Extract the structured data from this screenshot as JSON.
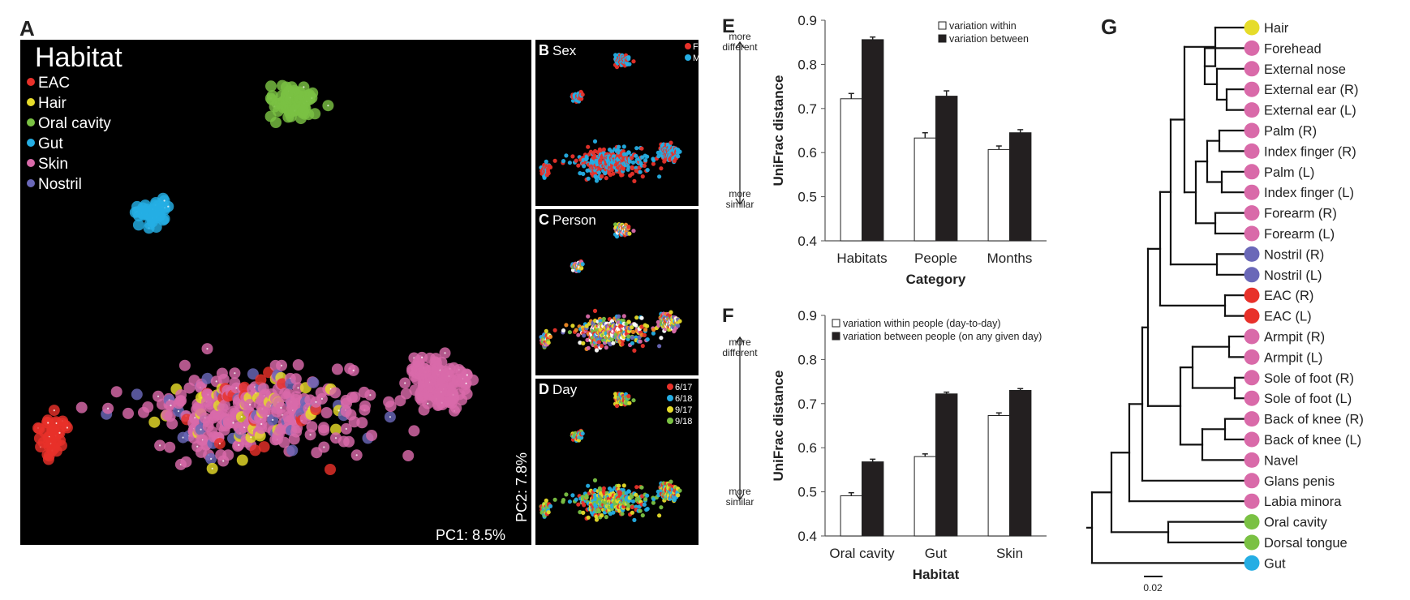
{
  "colors": {
    "EAC": "#e8312a",
    "Hair": "#e6dc2a",
    "Oral": "#7ac143",
    "Gut": "#25aee4",
    "Skin": "#d96aa9",
    "Nostril": "#6a68b8",
    "F": "#e8312a",
    "M": "#25aee4",
    "d617": "#e8312a",
    "d618": "#25aee4",
    "d917": "#e6dc2a",
    "d918": "#7ac143",
    "bg": "#000000",
    "bar_within": "#ffffff",
    "bar_between": "#231f20"
  },
  "panels": {
    "A": {
      "letter": "A",
      "title": "Habitat",
      "legend": [
        "EAC",
        "Hair",
        "Oral cavity",
        "Gut",
        "Skin",
        "Nostril"
      ],
      "pc1": "PC1: 8.5%",
      "pc2": "PC2: 7.8%"
    },
    "B": {
      "letter": "B",
      "title": "Sex",
      "legend": [
        "F",
        "M"
      ]
    },
    "C": {
      "letter": "C",
      "title": "Person"
    },
    "D": {
      "letter": "D",
      "title": "Day",
      "legend": [
        "6/17",
        "6/18",
        "9/17",
        "9/18"
      ]
    },
    "E": {
      "letter": "E"
    },
    "F": {
      "letter": "F"
    },
    "G": {
      "letter": "G",
      "scale_label": "0.02"
    }
  },
  "axis_notes": {
    "top": [
      "more",
      "different"
    ],
    "bottom": [
      "more",
      "similar"
    ]
  },
  "chart_data": [
    {
      "type": "bar",
      "panel": "E",
      "categories": [
        "Habitats",
        "People",
        "Months"
      ],
      "series": [
        {
          "name": "variation within",
          "values": [
            0.722,
            0.633,
            0.607
          ],
          "err": [
            0.012,
            0.012,
            0.008
          ]
        },
        {
          "name": "variation between",
          "values": [
            0.856,
            0.728,
            0.645
          ],
          "err": [
            0.006,
            0.012,
            0.007
          ]
        }
      ],
      "xlabel": "Category",
      "ylabel": "UniFrac distance",
      "ylim": [
        0.4,
        0.9
      ],
      "yticks": [
        "0.4",
        "0.5",
        "0.6",
        "0.7",
        "0.8",
        "0.9"
      ],
      "legend_position": "top-right"
    },
    {
      "type": "bar",
      "panel": "F",
      "categories": [
        "Oral cavity",
        "Gut",
        "Skin"
      ],
      "series": [
        {
          "name": "variation within people (day-to-day)",
          "values": [
            0.491,
            0.58,
            0.673
          ],
          "err": [
            0.007,
            0.006,
            0.006
          ]
        },
        {
          "name": "variation between people (on any given day)",
          "values": [
            0.568,
            0.722,
            0.73
          ],
          "err": [
            0.006,
            0.004,
            0.004
          ]
        }
      ],
      "xlabel": "Habitat",
      "ylabel": "UniFrac distance",
      "ylim": [
        0.4,
        0.9
      ],
      "yticks": [
        "0.4",
        "0.5",
        "0.6",
        "0.7",
        "0.8",
        "0.9"
      ],
      "legend_position": "top"
    },
    {
      "type": "dendrogram",
      "panel": "G",
      "leaves": [
        {
          "label": "Hair",
          "color": "Hair"
        },
        {
          "label": "Forehead",
          "color": "Skin"
        },
        {
          "label": "External nose",
          "color": "Skin"
        },
        {
          "label": "External ear (R)",
          "color": "Skin"
        },
        {
          "label": "External ear (L)",
          "color": "Skin"
        },
        {
          "label": "Palm (R)",
          "color": "Skin"
        },
        {
          "label": "Index finger (R)",
          "color": "Skin"
        },
        {
          "label": "Palm (L)",
          "color": "Skin"
        },
        {
          "label": "Index finger (L)",
          "color": "Skin"
        },
        {
          "label": "Forearm (R)",
          "color": "Skin"
        },
        {
          "label": "Forearm (L)",
          "color": "Skin"
        },
        {
          "label": "Nostril (R)",
          "color": "Nostril"
        },
        {
          "label": "Nostril (L)",
          "color": "Nostril"
        },
        {
          "label": "EAC (R)",
          "color": "EAC"
        },
        {
          "label": "EAC (L)",
          "color": "EAC"
        },
        {
          "label": "Armpit (R)",
          "color": "Skin"
        },
        {
          "label": "Armpit (L)",
          "color": "Skin"
        },
        {
          "label": "Sole of foot (R)",
          "color": "Skin"
        },
        {
          "label": "Sole of foot (L)",
          "color": "Skin"
        },
        {
          "label": "Back of knee (R)",
          "color": "Skin"
        },
        {
          "label": "Back of knee (L)",
          "color": "Skin"
        },
        {
          "label": "Navel",
          "color": "Skin"
        },
        {
          "label": "Glans penis",
          "color": "Skin"
        },
        {
          "label": "Labia minora",
          "color": "Skin"
        },
        {
          "label": "Oral cavity",
          "color": "Oral"
        },
        {
          "label": "Dorsal tongue",
          "color": "Oral"
        },
        {
          "label": "Gut",
          "color": "Gut"
        }
      ]
    }
  ]
}
